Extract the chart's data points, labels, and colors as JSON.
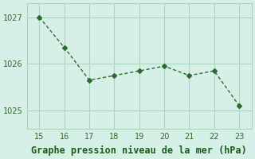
{
  "x": [
    15,
    16,
    17,
    18,
    19,
    20,
    21,
    22,
    23
  ],
  "y": [
    1027.0,
    1026.35,
    1025.65,
    1025.75,
    1025.85,
    1025.95,
    1025.75,
    1025.85,
    1025.1
  ],
  "line_color": "#2d6a2d",
  "marker": "D",
  "marker_size": 3,
  "bg_color": "#d6f0e8",
  "grid_color": "#aad4c0",
  "title": "Graphe pression niveau de la mer (hPa)",
  "title_color": "#1a5c1a",
  "title_fontsize": 8.5,
  "xlabel": "",
  "ylabel": "",
  "xlim": [
    14.5,
    23.5
  ],
  "ylim": [
    1024.6,
    1027.3
  ],
  "yticks": [
    1025,
    1026,
    1027
  ],
  "xticks": [
    15,
    16,
    17,
    18,
    19,
    20,
    21,
    22,
    23
  ],
  "tick_fontsize": 7,
  "tick_color": "#2d6a2d"
}
